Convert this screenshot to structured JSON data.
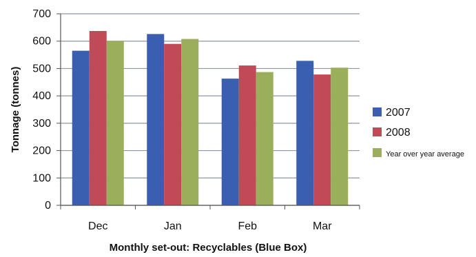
{
  "chart_data": {
    "type": "bar",
    "title": "",
    "xlabel": "Monthly set-out: Recyclables (Blue Box)",
    "ylabel": "Tonnage (tonnes)",
    "categories": [
      "Dec",
      "Jan",
      "Feb",
      "Mar"
    ],
    "series": [
      {
        "name": "2007",
        "values": [
          565,
          626,
          463,
          528
        ],
        "color": "#3a5fb0"
      },
      {
        "name": "2008",
        "values": [
          637,
          590,
          511,
          478
        ],
        "color": "#c04a55"
      },
      {
        "name": "Year over year average",
        "values": [
          601,
          608,
          487,
          503
        ],
        "color": "#9aae5c"
      }
    ],
    "ylim": [
      0,
      700
    ],
    "yticks": [
      "0",
      "100",
      "200",
      "300",
      "400",
      "500",
      "600",
      "700"
    ],
    "ytick_values": [
      0,
      100,
      200,
      300,
      400,
      500,
      600,
      700
    ],
    "grid": "horizontal",
    "legend_position": "right"
  }
}
